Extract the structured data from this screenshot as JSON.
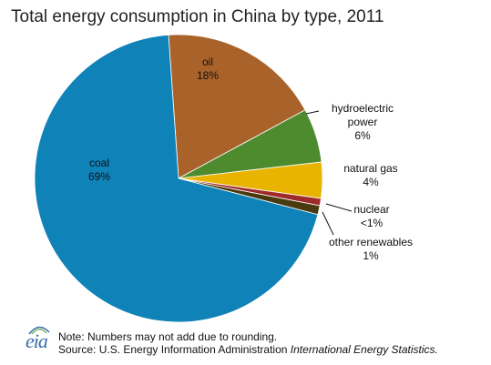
{
  "chart_data": {
    "type": "pie",
    "title": "Total energy consumption in China by type, 2011",
    "slices": [
      {
        "name": "oil",
        "value": 18,
        "label": "18%",
        "color": "#a9632a"
      },
      {
        "name": "hydroelectric power",
        "value": 6,
        "label": "6%",
        "color": "#4e8a2e"
      },
      {
        "name": "natural gas",
        "value": 4,
        "label": "4%",
        "color": "#e8b400"
      },
      {
        "name": "nuclear",
        "value": 0.8,
        "label": "<1%",
        "color": "#a02a2a"
      },
      {
        "name": "other renewables",
        "value": 1,
        "label": "1%",
        "color": "#4a3a10"
      },
      {
        "name": "coal",
        "value": 69,
        "label": "69%",
        "color": "#0f82b8"
      }
    ],
    "start_angle_deg": -4,
    "direction": "clockwise"
  },
  "labels": {
    "oil": [
      "oil",
      "18%"
    ],
    "hydro": [
      "hydroelectric",
      "power",
      "6%"
    ],
    "gas": [
      "natural gas",
      "4%"
    ],
    "nuclear": [
      "nuclear",
      "<1%"
    ],
    "other": [
      "other renewables",
      "1%"
    ],
    "coal": [
      "coal",
      "69%"
    ]
  },
  "footer": {
    "logo": "eia",
    "note": "Note: Numbers may not add due to rounding.",
    "source_prefix": "Source: U.S. Energy Information  Administration ",
    "source_title": "International Energy Statistics."
  }
}
